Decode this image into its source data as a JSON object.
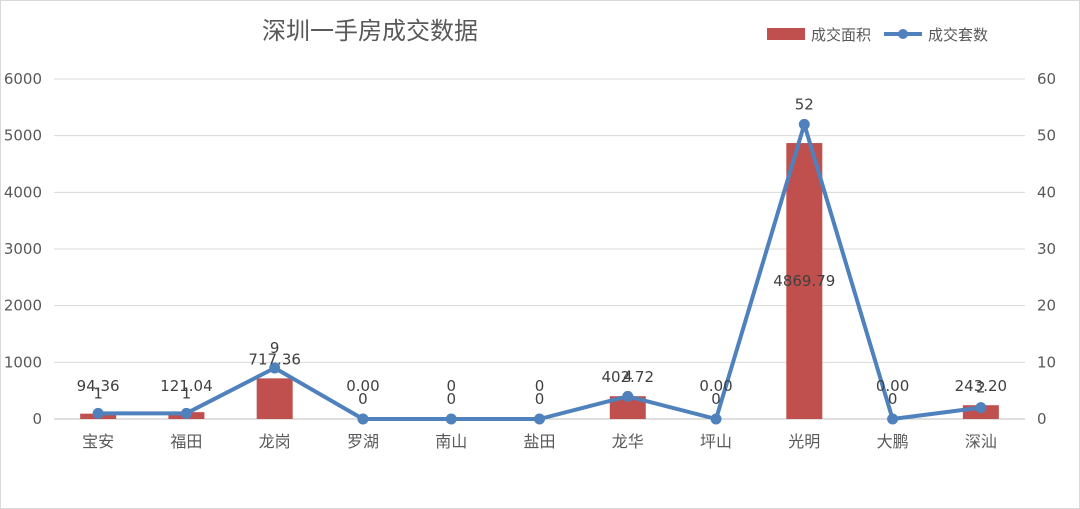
{
  "chart_data": {
    "type": "bar+line",
    "title": "深圳一手房成交数据",
    "categories": [
      "宝安",
      "福田",
      "龙岗",
      "罗湖",
      "南山",
      "盐田",
      "龙华",
      "坪山",
      "光明",
      "大鹏",
      "深汕"
    ],
    "series": [
      {
        "name": "成交面积",
        "type": "bar",
        "axis": "left",
        "color": "#c0504d",
        "values": [
          94.36,
          121.04,
          717.36,
          0.0,
          0,
          0,
          402.72,
          0.0,
          4869.79,
          0.0,
          243.2
        ],
        "labels": [
          "94.36",
          "121.04",
          "717.36",
          "0.00",
          "0",
          "0",
          "402.72",
          "0.00",
          "4869.79",
          "0.00",
          "243.20"
        ]
      },
      {
        "name": "成交套数",
        "type": "line",
        "axis": "right",
        "color": "#4f81bd",
        "values": [
          1,
          1,
          9,
          0,
          0,
          0,
          4,
          0,
          52,
          0,
          2
        ],
        "labels": [
          "1",
          "1",
          "9",
          "0",
          "0",
          "0",
          "4",
          "0",
          "52",
          "0",
          "2"
        ]
      }
    ],
    "y_left": {
      "min": 0,
      "max": 6000,
      "ticks": [
        "0",
        "1000",
        "2000",
        "3000",
        "4000",
        "5000",
        "6000"
      ]
    },
    "y_right": {
      "min": 0,
      "max": 60,
      "ticks": [
        "0",
        "10",
        "20",
        "30",
        "40",
        "50",
        "60"
      ]
    },
    "grid": true,
    "legend": "top-right"
  }
}
